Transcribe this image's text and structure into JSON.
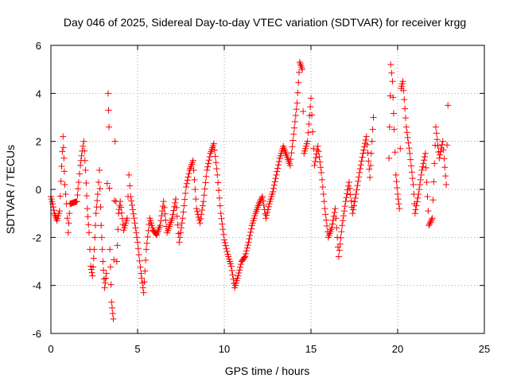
{
  "chart_data": {
    "type": "scatter",
    "title": "Day 046 of 2025, Sidereal Day-to-day VTEC variation (SDTVAR) for receiver krgg",
    "xlabel": "GPS time / hours",
    "ylabel": "SDTVAR / TECUs",
    "xlim": [
      0,
      25
    ],
    "ylim": [
      -6,
      6
    ],
    "xticks": [
      "0",
      "5",
      "10",
      "15",
      "20",
      "25"
    ],
    "yticks": [
      "-6",
      "-4",
      "-2",
      "0",
      "2",
      "4",
      "6"
    ],
    "grid": true,
    "marker": "+",
    "series": [
      {
        "name": "SDTVAR",
        "color": "#ff0000",
        "points": [
          [
            0.0,
            -0.3
          ],
          [
            0.1,
            -0.6
          ],
          [
            0.2,
            -1.0
          ],
          [
            0.35,
            -1.3
          ],
          [
            0.5,
            -0.9
          ],
          [
            0.7,
            2.2
          ],
          [
            0.75,
            1.3
          ],
          [
            0.8,
            0.2
          ],
          [
            0.9,
            -0.6
          ],
          [
            1.0,
            -1.8
          ],
          [
            1.1,
            -0.6
          ],
          [
            1.5,
            -0.5
          ],
          [
            1.6,
            0.3
          ],
          [
            1.7,
            1.0
          ],
          [
            1.8,
            1.6
          ],
          [
            1.9,
            2.0
          ],
          [
            2.0,
            0.8
          ],
          [
            2.1,
            -0.8
          ],
          [
            2.2,
            -1.8
          ],
          [
            2.3,
            -3.2
          ],
          [
            2.4,
            -3.6
          ],
          [
            2.5,
            -2.5
          ],
          [
            2.6,
            -1.0
          ],
          [
            2.7,
            -0.2
          ],
          [
            2.8,
            0.8
          ],
          [
            2.9,
            -1.5
          ],
          [
            3.0,
            -3.0
          ],
          [
            3.1,
            -4.1
          ],
          [
            3.2,
            -3.5
          ],
          [
            3.3,
            4.0
          ],
          [
            3.35,
            2.6
          ],
          [
            3.4,
            -2.5
          ],
          [
            3.5,
            -4.7
          ],
          [
            3.6,
            -5.4
          ],
          [
            3.7,
            2.0
          ],
          [
            3.8,
            -3.0
          ],
          [
            3.9,
            -1.0
          ],
          [
            4.0,
            -0.5
          ],
          [
            4.2,
            -1.7
          ],
          [
            4.4,
            -1.2
          ],
          [
            4.5,
            0.6
          ],
          [
            4.6,
            -0.3
          ],
          [
            4.8,
            -1.2
          ],
          [
            5.0,
            -2.2
          ],
          [
            5.2,
            -3.5
          ],
          [
            5.35,
            -4.3
          ],
          [
            5.5,
            -2.5
          ],
          [
            5.7,
            -1.2
          ],
          [
            5.9,
            -1.7
          ],
          [
            6.1,
            -1.9
          ],
          [
            6.3,
            -1.5
          ],
          [
            6.5,
            -0.5
          ],
          [
            6.7,
            -1.8
          ],
          [
            7.0,
            -1.2
          ],
          [
            7.2,
            -0.4
          ],
          [
            7.4,
            -2.2
          ],
          [
            7.6,
            -1.2
          ],
          [
            7.8,
            0.1
          ],
          [
            8.0,
            0.8
          ],
          [
            8.2,
            1.2
          ],
          [
            8.4,
            -0.8
          ],
          [
            8.6,
            -1.4
          ],
          [
            8.8,
            -0.5
          ],
          [
            9.0,
            0.8
          ],
          [
            9.2,
            1.5
          ],
          [
            9.4,
            1.9
          ],
          [
            9.6,
            0.6
          ],
          [
            9.8,
            -1.0
          ],
          [
            10.0,
            -2.1
          ],
          [
            10.2,
            -2.7
          ],
          [
            10.4,
            -3.2
          ],
          [
            10.6,
            -4.1
          ],
          [
            10.8,
            -3.6
          ],
          [
            11.0,
            -3.0
          ],
          [
            11.2,
            -2.8
          ],
          [
            11.4,
            -2.2
          ],
          [
            11.6,
            -1.5
          ],
          [
            11.8,
            -1.0
          ],
          [
            12.0,
            -0.6
          ],
          [
            12.2,
            -0.3
          ],
          [
            12.4,
            -1.2
          ],
          [
            12.6,
            -0.6
          ],
          [
            12.8,
            -0.1
          ],
          [
            13.0,
            0.6
          ],
          [
            13.2,
            1.3
          ],
          [
            13.4,
            1.8
          ],
          [
            13.8,
            1.0
          ],
          [
            14.0,
            2.3
          ],
          [
            14.2,
            3.6
          ],
          [
            14.35,
            5.3
          ],
          [
            14.5,
            5.0
          ],
          [
            14.6,
            1.5
          ],
          [
            14.8,
            2.0
          ],
          [
            15.0,
            3.8
          ],
          [
            15.1,
            2.4
          ],
          [
            15.2,
            1.0
          ],
          [
            15.4,
            1.8
          ],
          [
            15.6,
            0.7
          ],
          [
            15.8,
            -0.8
          ],
          [
            16.0,
            -2.0
          ],
          [
            16.2,
            -1.6
          ],
          [
            16.4,
            -0.8
          ],
          [
            16.6,
            -2.8
          ],
          [
            16.8,
            -1.5
          ],
          [
            17.0,
            -0.5
          ],
          [
            17.2,
            0.3
          ],
          [
            17.4,
            -1.0
          ],
          [
            17.6,
            -0.2
          ],
          [
            17.8,
            0.7
          ],
          [
            18.0,
            1.5
          ],
          [
            18.2,
            2.2
          ],
          [
            18.4,
            0.5
          ],
          [
            18.6,
            3.0
          ],
          [
            19.5,
            1.3
          ],
          [
            19.6,
            5.2
          ],
          [
            19.7,
            4.5
          ],
          [
            19.8,
            2.5
          ],
          [
            19.9,
            0.6
          ],
          [
            20.0,
            -0.2
          ],
          [
            20.1,
            -0.8
          ],
          [
            20.2,
            4.2
          ],
          [
            20.3,
            4.5
          ],
          [
            20.5,
            2.6
          ],
          [
            20.7,
            1.5
          ],
          [
            20.9,
            0.2
          ],
          [
            21.0,
            -1.0
          ],
          [
            21.2,
            -0.2
          ],
          [
            21.4,
            0.8
          ],
          [
            21.6,
            1.5
          ],
          [
            21.8,
            -1.5
          ],
          [
            22.0,
            -1.2
          ],
          [
            22.2,
            2.6
          ],
          [
            22.4,
            1.3
          ],
          [
            22.6,
            2.0
          ],
          [
            22.8,
            0.2
          ],
          [
            22.9,
            3.5
          ]
        ]
      }
    ]
  }
}
